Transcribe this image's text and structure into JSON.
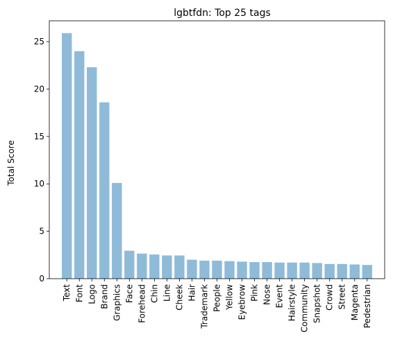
{
  "chart_data": {
    "type": "bar",
    "title": "lgbtfdn: Top 25 tags",
    "xlabel": "",
    "ylabel": "Total Score",
    "categories": [
      "Text",
      "Font",
      "Logo",
      "Brand",
      "Graphics",
      "Face",
      "Forehead",
      "Chin",
      "Line",
      "Cheek",
      "Hair",
      "Trademark",
      "People",
      "Yellow",
      "Eyebrow",
      "Pink",
      "Nose",
      "Event",
      "Hairstyle",
      "Community",
      "Snapshot",
      "Crowd",
      "Street",
      "Magenta",
      "Pedestrian"
    ],
    "values": [
      25.9,
      24.0,
      22.3,
      18.6,
      10.1,
      2.95,
      2.65,
      2.55,
      2.45,
      2.45,
      2.0,
      1.9,
      1.9,
      1.85,
      1.8,
      1.75,
      1.75,
      1.7,
      1.7,
      1.7,
      1.65,
      1.55,
      1.55,
      1.5,
      1.45
    ],
    "ylim": [
      0,
      27.2
    ],
    "yticks": [
      0,
      5,
      10,
      15,
      20,
      25
    ],
    "bar_color": "#8fbbd9",
    "grid": false
  }
}
